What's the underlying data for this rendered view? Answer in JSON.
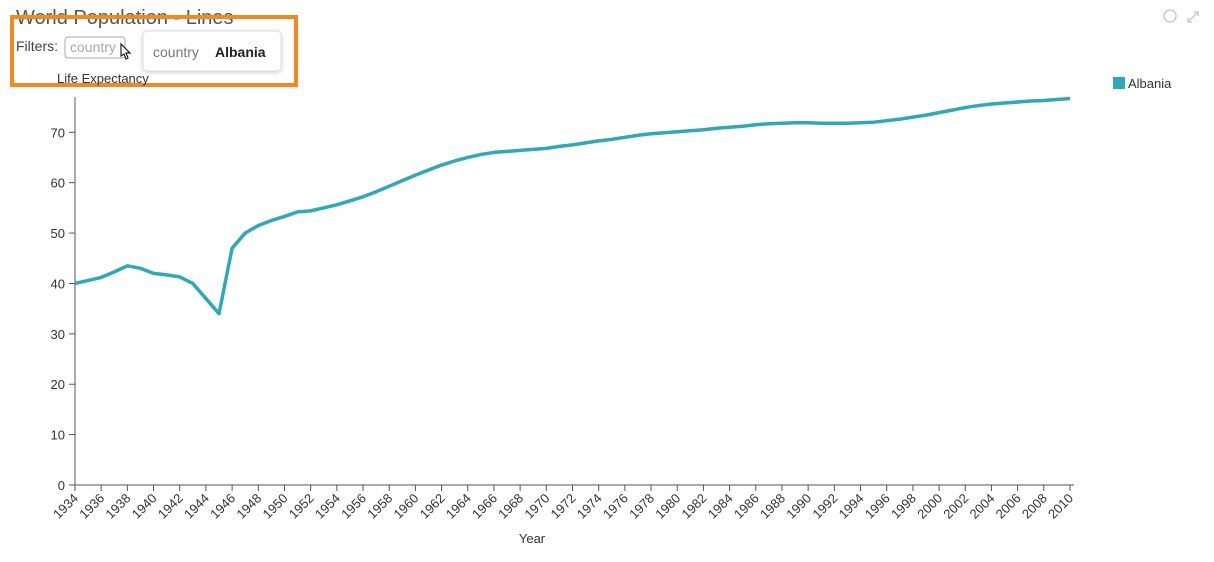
{
  "chart_data": {
    "type": "line",
    "title": "World Population - Lines",
    "x_label": "Year",
    "y_label": "Life Expectancy",
    "x": [
      1934,
      1935,
      1936,
      1937,
      1938,
      1939,
      1940,
      1941,
      1942,
      1943,
      1944,
      1945,
      1946,
      1947,
      1948,
      1949,
      1950,
      1951,
      1952,
      1953,
      1954,
      1955,
      1956,
      1957,
      1958,
      1959,
      1960,
      1961,
      1962,
      1963,
      1964,
      1965,
      1966,
      1967,
      1968,
      1969,
      1970,
      1971,
      1972,
      1973,
      1974,
      1975,
      1976,
      1977,
      1978,
      1979,
      1980,
      1981,
      1982,
      1983,
      1984,
      1985,
      1986,
      1987,
      1988,
      1989,
      1990,
      1991,
      1992,
      1993,
      1994,
      1995,
      1996,
      1997,
      1998,
      1999,
      2000,
      2001,
      2002,
      2003,
      2004,
      2005,
      2006,
      2007,
      2008,
      2009,
      2010
    ],
    "series": [
      {
        "name": "Albania",
        "color": "#2fa8b8",
        "values": [
          40,
          40.6,
          41.2,
          42.3,
          43.5,
          43,
          42,
          41.7,
          41.3,
          40,
          37,
          34,
          47,
          50,
          51.5,
          52.5,
          53.3,
          54.2,
          54.4,
          55,
          55.6,
          56.4,
          57.2,
          58.2,
          59.3,
          60.4,
          61.5,
          62.5,
          63.5,
          64.3,
          65,
          65.6,
          66,
          66.2,
          66.4,
          66.6,
          66.8,
          67.2,
          67.5,
          67.9,
          68.3,
          68.6,
          69,
          69.4,
          69.7,
          69.9,
          70.1,
          70.3,
          70.5,
          70.8,
          71,
          71.2,
          71.5,
          71.7,
          71.8,
          71.9,
          71.9,
          71.8,
          71.8,
          71.8,
          71.9,
          72,
          72.3,
          72.6,
          73,
          73.4,
          73.9,
          74.4,
          74.9,
          75.3,
          75.6,
          75.8,
          76,
          76.2,
          76.3,
          76.5,
          76.7
        ]
      }
    ],
    "xlim": [
      1934,
      2010
    ],
    "ylim": [
      0,
      77
    ],
    "xticks": [
      1934,
      1936,
      1938,
      1940,
      1942,
      1944,
      1946,
      1948,
      1950,
      1952,
      1954,
      1956,
      1958,
      1960,
      1962,
      1964,
      1966,
      1968,
      1970,
      1972,
      1974,
      1976,
      1978,
      1980,
      1982,
      1984,
      1986,
      1988,
      1990,
      1992,
      1994,
      1996,
      1998,
      2000,
      2002,
      2004,
      2006,
      2008,
      2010
    ],
    "yticks": [
      0,
      10,
      20,
      30,
      40,
      50,
      60,
      70
    ],
    "legend": "top-right"
  },
  "ui": {
    "filters_label": "Filters:",
    "filter_placeholder": "country",
    "tooltip": {
      "key": "country",
      "value": "Albania"
    }
  }
}
